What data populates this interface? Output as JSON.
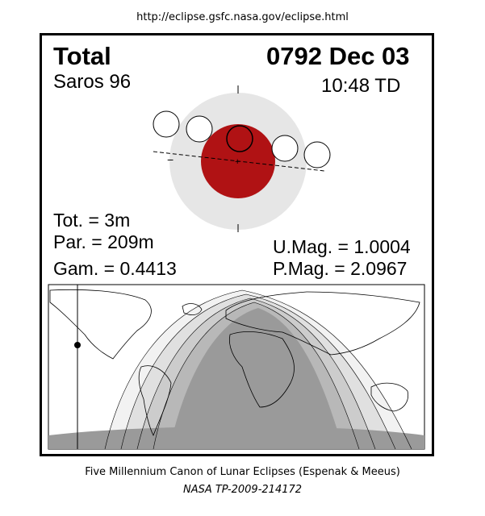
{
  "header": {
    "url": "http://eclipse.gsfc.nasa.gov/eclipse.html"
  },
  "eclipse": {
    "type": "Total",
    "date": "0792 Dec 03",
    "saros": "Saros  96",
    "time": "10:48 TD",
    "tot": "Tot. =   3m",
    "par": "Par. = 209m",
    "gam": "Gam. = 0.4413",
    "umag": "U.Mag. = 1.0004",
    "pmag": "P.Mag. = 2.0967"
  },
  "diagram": {
    "minus_label": "−",
    "plus_label": "+",
    "colors": {
      "umbra": "#b01214",
      "penumbra": "#e6e6e6",
      "map_shade": "#9a9a9a"
    }
  },
  "footer": {
    "line1": "Five Millennium Canon of Lunar Eclipses (Espenak & Meeus)",
    "line2": "NASA TP-2009-214172"
  }
}
